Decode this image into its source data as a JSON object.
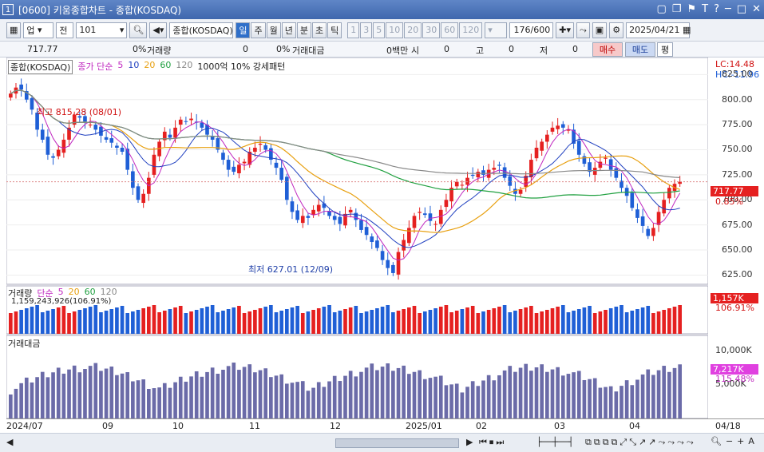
{
  "window": {
    "number": "1",
    "title": "[0600] 키움종합차트 - 종합(KOSDAQ)"
  },
  "window_buttons": [
    "▢",
    "❐",
    "⚑",
    "T",
    "?",
    "─",
    "□",
    "✕"
  ],
  "toolbar": {
    "market": "업",
    "market2": "전",
    "code": "101",
    "name": "종합(KOSDAQ)",
    "periods": [
      "일",
      "주",
      "월",
      "년",
      "분",
      "초",
      "틱"
    ],
    "period_selected": "일",
    "intervals": [
      "1",
      "3",
      "5",
      "10",
      "20",
      "30",
      "60",
      "120"
    ],
    "count": "176",
    "count_total": "/600",
    "date": "2025/04/21"
  },
  "infobar": {
    "price": "717.77",
    "change_pct": "0%",
    "volume_label": "거래량",
    "volume_value": "0",
    "change_pct2": "0%",
    "value_label": "거래대금",
    "value_value": "0백만",
    "si_label": "시",
    "si_value": "0",
    "go_label": "고",
    "go_value": "0",
    "jeo_label": "저",
    "jeo_value": "0",
    "buy": "매수",
    "sell": "매도",
    "pyeong": "평"
  },
  "price_legend": {
    "name": "종합(KOSDAQ)",
    "ma_label": "종가 단순",
    "ma": [
      "5",
      "10",
      "20",
      "60",
      "120"
    ],
    "extra": "1000억 10% 강세패턴"
  },
  "price_annotations": {
    "high": "최고 815.28 (08/01)",
    "low": "최저 627.01 (12/09)",
    "lc": "LC:14.48",
    "hc": "HC:-11.96",
    "last": "717.77",
    "last_pct": "0.85%"
  },
  "y_ticks": [
    "825.00",
    "800.00",
    "775.00",
    "750.00",
    "725.00",
    "700.00",
    "675.00",
    "650.00",
    "625.00"
  ],
  "volume_legend": {
    "name": "거래량",
    "ma_label": "단순",
    "ma": [
      "5",
      "20",
      "60",
      "120"
    ],
    "sub": "1,159,243,926(106.91%)"
  },
  "volume_tags": {
    "last": "1,157K",
    "pct": "106.91%"
  },
  "value_legend": {
    "name": "거래대금"
  },
  "value_ticks": [
    "10,000K",
    "5,000K"
  ],
  "value_tags": {
    "last": "7,217K",
    "pct": "115.48%"
  },
  "x_ticks": [
    "2024/07",
    "09",
    "10",
    "11",
    "12",
    "2025/01",
    "02",
    "03",
    "04",
    "04/18"
  ],
  "colors": {
    "up": "#e52020",
    "down": "#1f5fd6",
    "ma5": "#c028c0",
    "ma10": "#2040c0",
    "ma20": "#e8a010",
    "ma60": "#20a040",
    "ma120": "#888888"
  },
  "chart_data": {
    "type": "candlestick",
    "title": "종합(KOSDAQ)",
    "y_range": [
      615,
      838
    ],
    "series_close": [
      806,
      812,
      810,
      800,
      790,
      770,
      760,
      745,
      742,
      750,
      760,
      772,
      785,
      782,
      778,
      775,
      770,
      764,
      760,
      757,
      752,
      748,
      730,
      712,
      700,
      706,
      722,
      745,
      758,
      768,
      762,
      772,
      780,
      778,
      781,
      777,
      772,
      765,
      760,
      750,
      740,
      730,
      728,
      735,
      738,
      748,
      752,
      756,
      750,
      740,
      732,
      720,
      700,
      688,
      680,
      684,
      682,
      690,
      695,
      692,
      684,
      680,
      676,
      686,
      690,
      680,
      670,
      665,
      658,
      652,
      640,
      632,
      627,
      648,
      660,
      672,
      684,
      688,
      685,
      679,
      676,
      690,
      700,
      712,
      718,
      715,
      722,
      724,
      728,
      725,
      730,
      732,
      734,
      722,
      714,
      706,
      710,
      724,
      740,
      752,
      758,
      765,
      772,
      774,
      772,
      770,
      756,
      745,
      736,
      728,
      732,
      738,
      742,
      730,
      722,
      712,
      704,
      692,
      682,
      674,
      664,
      672,
      688,
      700,
      712,
      716,
      718
    ]
  }
}
